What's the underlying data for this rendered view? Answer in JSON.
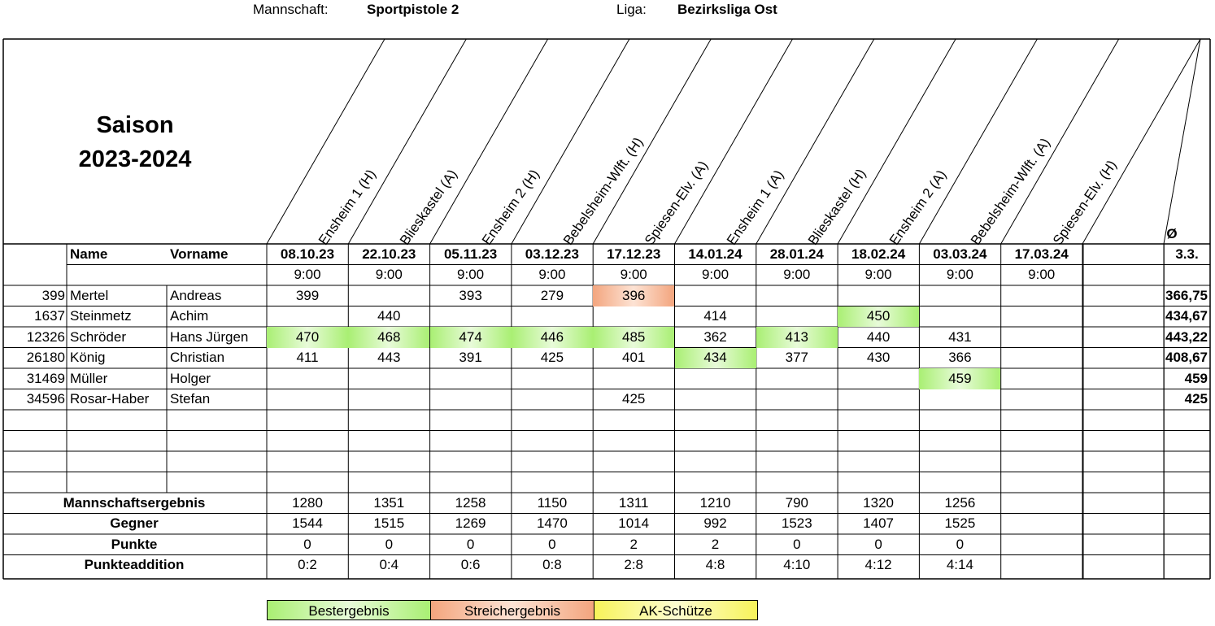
{
  "header": {
    "team_label": "Mannschaft:",
    "team_value": "Sportpistole 2",
    "league_label": "Liga:",
    "league_value": "Bezirksliga Ost"
  },
  "season": {
    "line1": "Saison",
    "line2": "2023-2024"
  },
  "opponents": [
    "Ensheim 1 (H)",
    "Blieskastel (A)",
    "Ensheim 2 (H)",
    "Bebelsheim-Wlft. (H)",
    "Spiesen-Elv. (A)",
    "Ensheim 1 (A)",
    "Blieskastel (H)",
    "Ensheim 2 (A)",
    "Bebelsheim-Wlft. (A)",
    "Spiesen-Elv. (H)"
  ],
  "avg_symbol": "Ø",
  "columns": {
    "name": "Name",
    "firstname": "Vorname",
    "dates": [
      "08.10.23",
      "22.10.23",
      "05.11.23",
      "03.12.23",
      "17.12.23",
      "14.01.24",
      "28.01.24",
      "18.02.24",
      "03.03.24",
      "17.03.24",
      ""
    ],
    "avg_header": "3.3.",
    "times": [
      "9:00",
      "9:00",
      "9:00",
      "9:00",
      "9:00",
      "9:00",
      "9:00",
      "9:00",
      "9:00",
      "9:00",
      ""
    ]
  },
  "players": [
    {
      "id": "399",
      "name": "Mertel",
      "firstname": "Andreas",
      "scores": [
        "399",
        "",
        "393",
        "279",
        "396",
        "",
        "",
        "",
        "",
        "",
        ""
      ],
      "marks": [
        "",
        "",
        "",
        "",
        "strike",
        "",
        "",
        "",
        "",
        "",
        ""
      ],
      "avg": "366,75"
    },
    {
      "id": "1637",
      "name": "Steinmetz",
      "firstname": "Achim",
      "scores": [
        "",
        "440",
        "",
        "",
        "",
        "414",
        "",
        "450",
        "",
        "",
        ""
      ],
      "marks": [
        "",
        "",
        "",
        "",
        "",
        "",
        "",
        "best",
        "",
        "",
        ""
      ],
      "avg": "434,67"
    },
    {
      "id": "12326",
      "name": "Schröder",
      "firstname": "Hans Jürgen",
      "scores": [
        "470",
        "468",
        "474",
        "446",
        "485",
        "362",
        "413",
        "440",
        "431",
        "",
        ""
      ],
      "marks": [
        "best",
        "best",
        "best",
        "best",
        "best",
        "",
        "best",
        "",
        "",
        "",
        ""
      ],
      "avg": "443,22"
    },
    {
      "id": "26180",
      "name": "König",
      "firstname": "Christian",
      "scores": [
        "411",
        "443",
        "391",
        "425",
        "401",
        "434",
        "377",
        "430",
        "366",
        "",
        ""
      ],
      "marks": [
        "",
        "",
        "",
        "",
        "",
        "best",
        "",
        "",
        "",
        "",
        ""
      ],
      "avg": "408,67"
    },
    {
      "id": "31469",
      "name": "Müller",
      "firstname": "Holger",
      "scores": [
        "",
        "",
        "",
        "",
        "",
        "",
        "",
        "",
        "459",
        "",
        ""
      ],
      "marks": [
        "",
        "",
        "",
        "",
        "",
        "",
        "",
        "",
        "best",
        "",
        ""
      ],
      "avg": "459"
    },
    {
      "id": "34596",
      "name": "Rosar-Haber",
      "firstname": "Stefan",
      "scores": [
        "",
        "",
        "",
        "",
        "425",
        "",
        "",
        "",
        "",
        "",
        ""
      ],
      "marks": [
        "",
        "",
        "",
        "",
        "",
        "",
        "",
        "",
        "",
        "",
        ""
      ],
      "avg": "425"
    }
  ],
  "summary": [
    {
      "label": "Mannschaftsergebnis",
      "values": [
        "1280",
        "1351",
        "1258",
        "1150",
        "1311",
        "1210",
        "790",
        "1320",
        "1256",
        "",
        ""
      ]
    },
    {
      "label": "Gegner",
      "values": [
        "1544",
        "1515",
        "1269",
        "1470",
        "1014",
        "992",
        "1523",
        "1407",
        "1525",
        "",
        ""
      ]
    },
    {
      "label": "Punkte",
      "values": [
        "0",
        "0",
        "0",
        "0",
        "2",
        "2",
        "0",
        "0",
        "0",
        "",
        ""
      ]
    },
    {
      "label": "Punkteaddition",
      "values": [
        "0:2",
        "0:4",
        "0:6",
        "0:8",
        "2:8",
        "4:8",
        "4:10",
        "4:12",
        "4:14",
        "",
        ""
      ]
    }
  ],
  "legend": {
    "best": "Bestergebnis",
    "strike": "Streichergebnis",
    "ak": "AK-Schütze"
  }
}
